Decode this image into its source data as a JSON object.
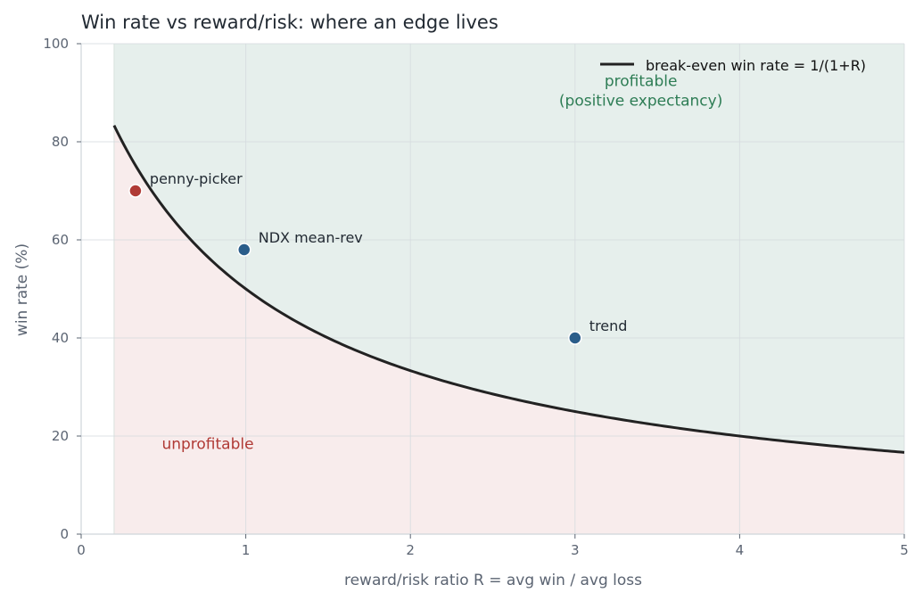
{
  "chart_data": {
    "type": "line",
    "title": "Win rate vs reward/risk: where an edge lives",
    "xlabel": "reward/risk ratio  R = avg win / avg loss",
    "ylabel": "win rate (%)",
    "xlim": [
      0,
      5
    ],
    "ylim": [
      0,
      100
    ],
    "xticks": [
      0,
      1,
      2,
      3,
      4,
      5
    ],
    "yticks": [
      0,
      20,
      40,
      60,
      80,
      100
    ],
    "grid": true,
    "legend_position": "top-right",
    "series": [
      {
        "name": "break-even win rate = 1/(1+R)",
        "kind": "curve",
        "x_range": [
          0.2,
          5
        ],
        "formula": "100/(1+R)",
        "color": "#222222"
      }
    ],
    "points": [
      {
        "label": "penny-picker",
        "x": 0.33,
        "y": 70,
        "color": "#b03a35"
      },
      {
        "label": "NDX mean-rev",
        "x": 0.99,
        "y": 58,
        "color": "#2a5d8a"
      },
      {
        "label": "trend",
        "x": 3.0,
        "y": 40,
        "color": "#2a5d8a"
      }
    ],
    "regions": {
      "profitable": {
        "label_line1": "profitable",
        "label_line2": "(positive expectancy)",
        "fill": "#e6efec",
        "text_color": "#2e7d55"
      },
      "unprofitable": {
        "label": "unprofitable",
        "fill": "#f8ecec",
        "text_color": "#b03a35"
      }
    }
  }
}
